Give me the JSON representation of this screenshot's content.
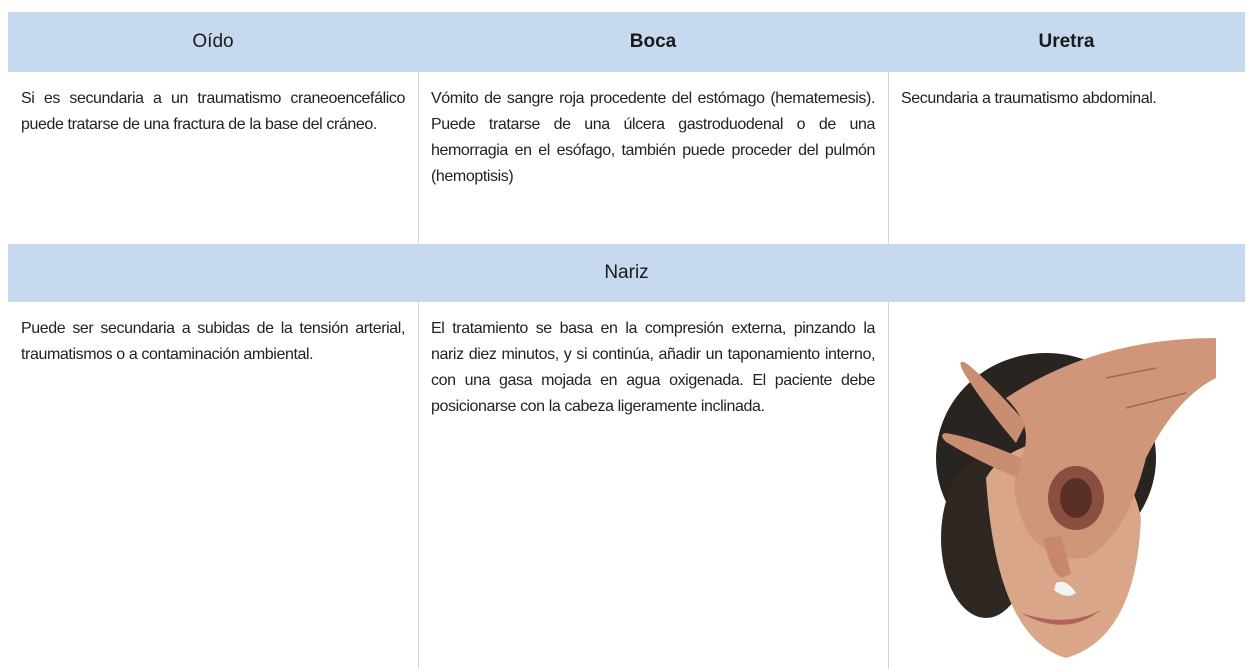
{
  "table": {
    "header": [
      "Oído",
      "Boca",
      "Uretra"
    ],
    "rows": [
      [
        "Si es secundaria a un traumatismo craneoencefálico puede tratarse de una fractura de la base del cráneo.",
        "Vómito de sangre roja procedente del estómago (hematemesis). Puede tratarse de una úlcera gastroduodenal o de una hemorragia en el esófago, también puede proceder del pulmón (hemoptisis)",
        "Secundaria a traumatismo abdominal."
      ]
    ],
    "section": "Nariz",
    "section_rows": [
      [
        "Puede ser secundaria a subidas de la tensión arterial, traumatismos o a contaminación ambiental.",
        "El tratamiento se basa en la compresión externa, pinzando la nariz diez minutos, y si continúa, añadir un taponamiento interno, con una gasa mojada en agua oxigenada. El paciente debe posicionarse con la cabeza ligeramente inclinada."
      ]
    ]
  }
}
